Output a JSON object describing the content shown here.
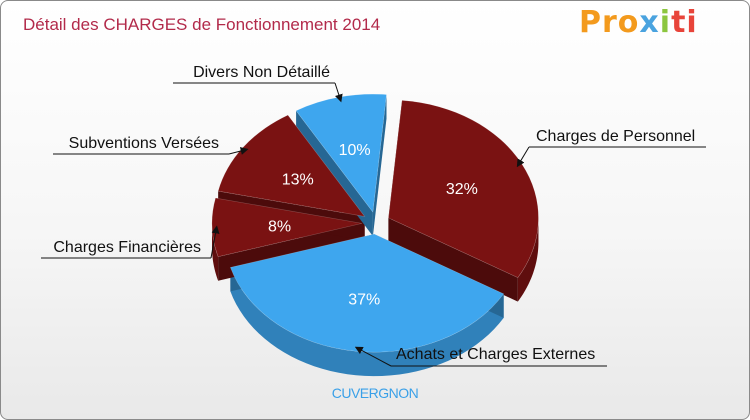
{
  "title": "Détail des CHARGES de Fonctionnement 2014",
  "logo": {
    "text": "Proxiti",
    "colors": [
      "#f39a1d",
      "#4aa3df",
      "#8cc63f",
      "#e8443a"
    ]
  },
  "commune": "CUVERGNON",
  "chart_data": {
    "type": "pie",
    "title": "Détail des CHARGES de Fonctionnement 2014",
    "categories": [
      "Charges de Personnel",
      "Achats et Charges Externes",
      "Charges Financières",
      "Subventions Versées",
      "Divers Non Détaillé"
    ],
    "values": [
      32,
      37,
      8,
      13,
      10
    ],
    "labels": [
      "32%",
      "37%",
      "8%",
      "13%",
      "10%"
    ],
    "colors": [
      "#7a1212",
      "#3ea6ee",
      "#7a1212",
      "#7a1212",
      "#3ea6ee"
    ],
    "unit": "%"
  }
}
